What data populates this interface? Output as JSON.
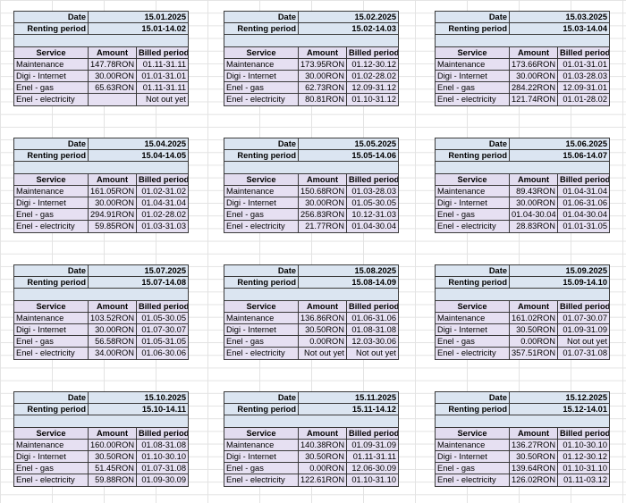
{
  "blocks": [
    {
      "date_label": "Date",
      "date": "15.01.2025",
      "period_label": "Renting period",
      "period": "15.01-14.02",
      "headers": [
        "Service",
        "Amount",
        "Billed period"
      ],
      "rows": [
        [
          "Maintenance",
          "147.78RON",
          "01.11-31.11"
        ],
        [
          "Digi - Internet",
          "30.00RON",
          "01.01-31.01"
        ],
        [
          "Enel - gas",
          "65.63RON",
          "01.11-31.11"
        ],
        [
          "Enel - electricity",
          null,
          "Not out yet"
        ]
      ]
    },
    {
      "date_label": "Date",
      "date": "15.02.2025",
      "period_label": "Renting period",
      "period": "15.02-14.03",
      "headers": [
        "Service",
        "Amount",
        "Billed period"
      ],
      "rows": [
        [
          "Maintenance",
          "173.95RON",
          "01.12-30.12"
        ],
        [
          "Digi - Internet",
          "30.00RON",
          "01.02-28.02"
        ],
        [
          "Enel - gas",
          "62.73RON",
          "12.09-31.12"
        ],
        [
          "Enel - electricity",
          "80.81RON",
          "01.10-31.12"
        ]
      ]
    },
    {
      "date_label": "Date",
      "date": "15.03.2025",
      "period_label": "Renting period",
      "period": "15.03-14.04",
      "headers": [
        "Service",
        "Amount",
        "Billed period"
      ],
      "rows": [
        [
          "Maintenance",
          "173.66RON",
          "01.01-31.01"
        ],
        [
          "Digi - Internet",
          "30.00RON",
          "01.03-28.03"
        ],
        [
          "Enel - gas",
          "284.22RON",
          "12.09-31.01"
        ],
        [
          "Enel - electricity",
          "121.74RON",
          "01.01-28.02"
        ]
      ]
    },
    {
      "date_label": "Date",
      "date": "15.04.2025",
      "period_label": "Renting period",
      "period": "15.04-14.05",
      "headers": [
        "Service",
        "Amount",
        "Billed period"
      ],
      "rows": [
        [
          "Maintenance",
          "161.05RON",
          "01.02-31.02"
        ],
        [
          "Digi - Internet",
          "30.00RON",
          "01.04-31.04"
        ],
        [
          "Enel - gas",
          "294.91RON",
          "01.02-28.02"
        ],
        [
          "Enel - electricity",
          "59.85RON",
          "01.03-31.03"
        ]
      ]
    },
    {
      "date_label": "Date",
      "date": "15.05.2025",
      "period_label": "Renting period",
      "period": "15.05-14.06",
      "headers": [
        "Service",
        "Amount",
        "Billed period"
      ],
      "rows": [
        [
          "Maintenance",
          "150.68RON",
          "01.03-28.03"
        ],
        [
          "Digi - Internet",
          "30.00RON",
          "01.05-30.05"
        ],
        [
          "Enel - gas",
          "256.83RON",
          "10.12-31.03"
        ],
        [
          "Enel - electricity",
          "21.77RON",
          "01.04-30.04"
        ]
      ]
    },
    {
      "date_label": "Date",
      "date": "15.06.2025",
      "period_label": "Renting period",
      "period": "15.06-14.07",
      "headers": [
        "Service",
        "Amount",
        "Billed period"
      ],
      "rows": [
        [
          "Maintenance",
          "89.43RON",
          "01.04-31.04"
        ],
        [
          "Digi - Internet",
          "30.00RON",
          "01.06-31.06"
        ],
        [
          "Enel - gas",
          "01.04-30.04",
          "01.04-30.04"
        ],
        [
          "Enel - electricity",
          "28.83RON",
          "01.01-31.05"
        ]
      ]
    },
    {
      "date_label": "Date",
      "date": "15.07.2025",
      "period_label": "Renting period",
      "period": "15.07-14.08",
      "headers": [
        "Service",
        "Amount",
        "Billed period"
      ],
      "rows": [
        [
          "Maintenance",
          "103.52RON",
          "01.05-30.05"
        ],
        [
          "Digi - Internet",
          "30.00RON",
          "01.07-30.07"
        ],
        [
          "Enel - gas",
          "56.58RON",
          "01.05-31.05"
        ],
        [
          "Enel - electricity",
          "34.00RON",
          "01.06-30.06"
        ]
      ]
    },
    {
      "date_label": "Date",
      "date": "15.08.2025",
      "period_label": "Renting period",
      "period": "15.08-14.09",
      "headers": [
        "Service",
        "Amount",
        "Billed period"
      ],
      "rows": [
        [
          "Maintenance",
          "136.86RON",
          "01.06-31.06"
        ],
        [
          "Digi - Internet",
          "30.50RON",
          "01.08-31.08"
        ],
        [
          "Enel - gas",
          "0.00RON",
          "12.03-30.06"
        ],
        [
          "Enel - electricity",
          "Not out yet",
          "Not out yet"
        ]
      ]
    },
    {
      "date_label": "Date",
      "date": "15.09.2025",
      "period_label": "Renting period",
      "period": "15.09-14.10",
      "headers": [
        "Service",
        "Amount",
        "Billed period"
      ],
      "rows": [
        [
          "Maintenance",
          "161.02RON",
          "01.07-30.07"
        ],
        [
          "Digi - Internet",
          "30.50RON",
          "01.09-31.09"
        ],
        [
          "Enel - gas",
          "0.00RON",
          "Not out yet"
        ],
        [
          "Enel - electricity",
          "357.51RON",
          "01.07-31.08"
        ]
      ]
    },
    {
      "date_label": "Date",
      "date": "15.10.2025",
      "period_label": "Renting period",
      "period": "15.10-14.11",
      "headers": [
        "Service",
        "Amount",
        "Billed period"
      ],
      "rows": [
        [
          "Maintenance",
          "160.00RON",
          "01.08-31.08"
        ],
        [
          "Digi - Internet",
          "30.50RON",
          "01.10-30.10"
        ],
        [
          "Enel - gas",
          "51.45RON",
          "01.07-31.08"
        ],
        [
          "Enel - electricity",
          "59.88RON",
          "01.09-30.09"
        ]
      ]
    },
    {
      "date_label": "Date",
      "date": "15.11.2025",
      "period_label": "Renting period",
      "period": "15.11-14.12",
      "headers": [
        "Service",
        "Amount",
        "Billed period"
      ],
      "rows": [
        [
          "Maintenance",
          "140.38RON",
          "01.09-31.09"
        ],
        [
          "Digi - Internet",
          "30.50RON",
          "01.11-31.11"
        ],
        [
          "Enel - gas",
          "0.00RON",
          "12.06-30.09"
        ],
        [
          "Enel - electricity",
          "122.61RON",
          "01.10-31.10"
        ]
      ]
    },
    {
      "date_label": "Date",
      "date": "15.12.2025",
      "period_label": "Renting period",
      "period": "15.12-14.01",
      "headers": [
        "Service",
        "Amount",
        "Billed period"
      ],
      "rows": [
        [
          "Maintenance",
          "136.27RON",
          "01.10-30.10"
        ],
        [
          "Digi - Internet",
          "30.50RON",
          "01.12-30.12"
        ],
        [
          "Enel - gas",
          "139.64RON",
          "01.10-31.10"
        ],
        [
          "Enel - electricity",
          "126.02RON",
          "01.11-03.12"
        ]
      ]
    }
  ]
}
